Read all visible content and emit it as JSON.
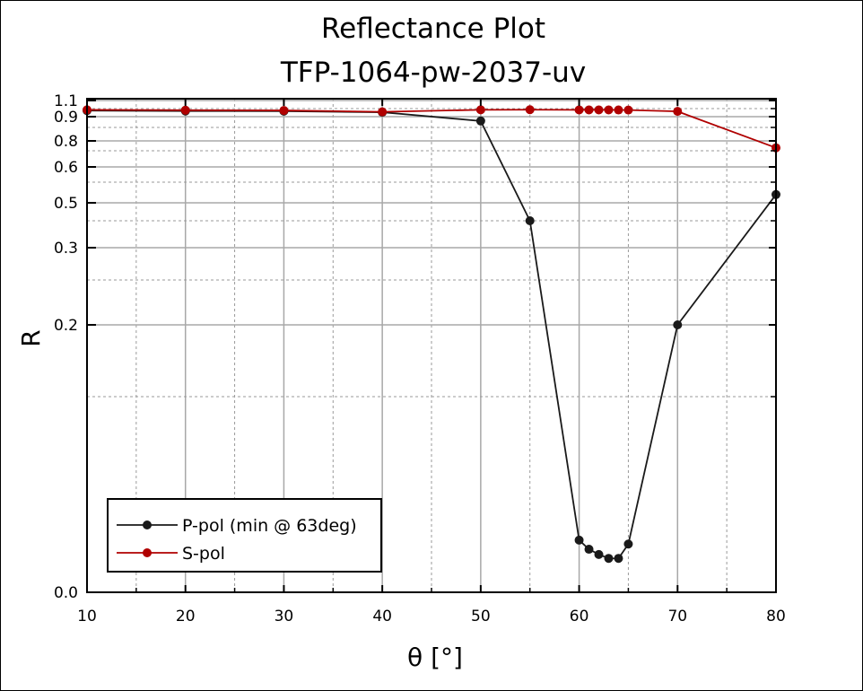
{
  "chart_data": {
    "type": "line",
    "title": "Reflectance Plot",
    "subtitle": "TFP-1064-pw-2037-uv",
    "xlabel": "θ [°]",
    "ylabel": "R",
    "xlim": [
      10,
      80
    ],
    "x_ticks": [
      "10",
      "20",
      "30",
      "40",
      "50",
      "60",
      "70",
      "80"
    ],
    "y_ticks": [
      {
        "label": "0.0",
        "y": 0.0
      },
      {
        "label": "0.2",
        "y": 0.2
      },
      {
        "label": "0.3",
        "y": 0.3
      },
      {
        "label": "0.5",
        "y": 0.5
      },
      {
        "label": "0.6",
        "y": 0.6
      },
      {
        "label": "0.8",
        "y": 0.8
      },
      {
        "label": "0.9",
        "y": 0.9
      },
      {
        "label": "1.1",
        "y": 1.1
      }
    ],
    "y_minor_grid": [
      0.15,
      0.25,
      0.4,
      0.55,
      0.7,
      0.85,
      1.0
    ],
    "grid": true,
    "legend_position": "bottom-left",
    "series": [
      {
        "name": "P-pol (min @ 63deg)",
        "color": "#1a1a1a",
        "x": [
          10,
          20,
          30,
          40,
          50,
          55,
          60,
          61,
          62,
          63,
          64,
          65,
          70,
          80
        ],
        "y": [
          0.975,
          0.97,
          0.968,
          0.955,
          0.88,
          0.4,
          0.04,
          0.033,
          0.029,
          0.026,
          0.026,
          0.037,
          0.2,
          0.52
        ]
      },
      {
        "name": "S-pol",
        "color": "#b00000",
        "x": [
          10,
          20,
          30,
          40,
          50,
          55,
          60,
          61,
          62,
          63,
          64,
          65,
          70,
          80
        ],
        "y": [
          0.985,
          0.98,
          0.977,
          0.96,
          0.985,
          0.986,
          0.984,
          0.984,
          0.984,
          0.984,
          0.983,
          0.982,
          0.965,
          0.73
        ]
      }
    ]
  }
}
